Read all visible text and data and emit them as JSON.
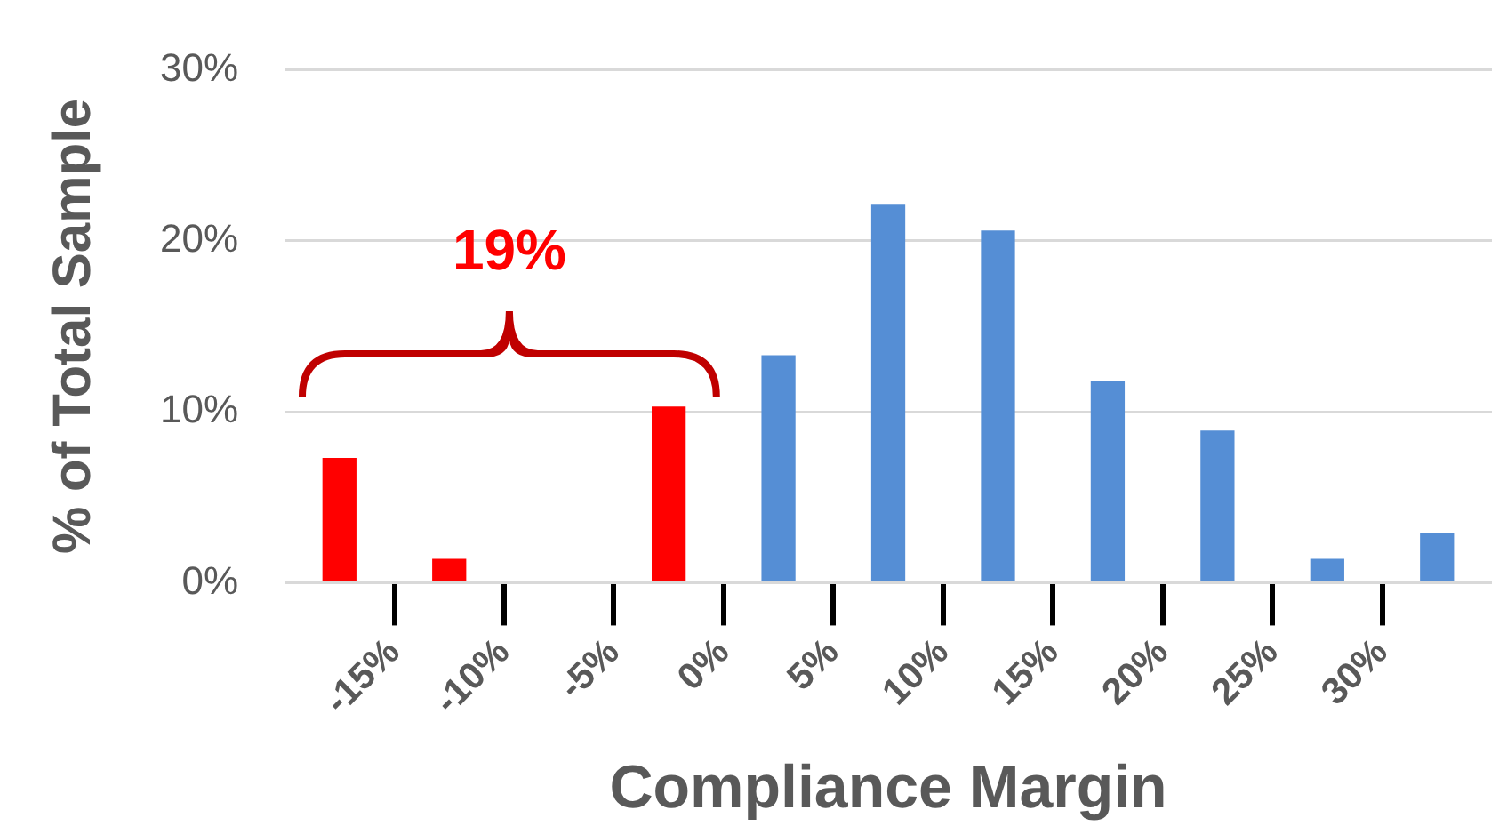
{
  "chart_data": {
    "type": "histogram",
    "xlabel": "Compliance Margin",
    "ylabel": "% of Total Sample",
    "bins": [
      -20,
      -15,
      -10,
      -5,
      0,
      5,
      10,
      15,
      20,
      25,
      30,
      35
    ],
    "values": [
      7.3,
      1.4,
      0,
      10.3,
      13.3,
      22.1,
      20.6,
      11.8,
      8.9,
      1.4,
      2.9
    ],
    "colors": [
      "#ff0000",
      "#ff0000",
      "#ff0000",
      "#ff0000",
      "#558ed5",
      "#558ed5",
      "#558ed5",
      "#558ed5",
      "#558ed5",
      "#558ed5",
      "#558ed5"
    ],
    "xlim": [
      -20,
      35
    ],
    "xticks": [
      {
        "value": -15,
        "label": "-15%"
      },
      {
        "value": -10,
        "label": "-10%"
      },
      {
        "value": -5,
        "label": "-5%"
      },
      {
        "value": 0,
        "label": "0%"
      },
      {
        "value": 5,
        "label": "5%"
      },
      {
        "value": 10,
        "label": "10%"
      },
      {
        "value": 15,
        "label": "15%"
      },
      {
        "value": 20,
        "label": "20%"
      },
      {
        "value": 25,
        "label": "25%"
      },
      {
        "value": 30,
        "label": "30%"
      }
    ],
    "ylim": [
      0,
      30
    ],
    "yticks": [
      {
        "value": 0,
        "label": "0%"
      },
      {
        "value": 10,
        "label": "10%"
      },
      {
        "value": 20,
        "label": "20%"
      },
      {
        "value": 30,
        "label": "30%"
      }
    ],
    "grid": "y",
    "annotations": [
      "19%"
    ]
  }
}
